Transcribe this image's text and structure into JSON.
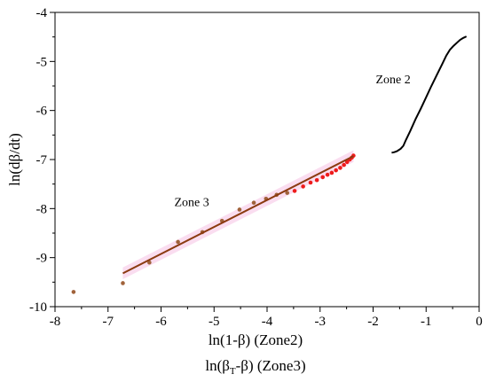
{
  "chart_data": {
    "type": "scatter",
    "xlabel": "ln(1-β) (Zone2)",
    "xlabel2_main": "ln(β",
    "xlabel2_sub": "T",
    "xlabel2_tail": "-β) (Zone3)",
    "ylabel": "ln(dβ/dt)",
    "xlim": [
      -8,
      0
    ],
    "ylim": [
      -10,
      -4
    ],
    "x_ticks": [
      -8,
      -7,
      -6,
      -5,
      -4,
      -3,
      -2,
      -1,
      0
    ],
    "y_ticks": [
      -4,
      -5,
      -6,
      -7,
      -8,
      -9,
      -10
    ],
    "x_tick_labels": [
      "-8",
      "-7",
      "-6",
      "-5",
      "-4",
      "-3",
      "-2",
      "-1",
      "0"
    ],
    "y_tick_labels": [
      "-4",
      "-5",
      "-6",
      "-7",
      "-8",
      "-9",
      "-10"
    ],
    "annotations": [
      {
        "text": "Zone 2",
        "x": -1.95,
        "y": -5.45
      },
      {
        "text": "Zone 3",
        "x": -5.75,
        "y": -7.95
      }
    ],
    "series": [
      {
        "key": "zone3_points",
        "color": "#a0623a",
        "points": [
          [
            -7.65,
            -9.7
          ],
          [
            -6.72,
            -9.52
          ],
          [
            -6.22,
            -9.1
          ],
          [
            -5.68,
            -8.68
          ],
          [
            -5.22,
            -8.48
          ],
          [
            -4.85,
            -8.25
          ],
          [
            -4.52,
            -8.02
          ],
          [
            -4.25,
            -7.88
          ],
          [
            -4.02,
            -7.8
          ],
          [
            -3.82,
            -7.72
          ],
          [
            -3.62,
            -7.68
          ]
        ]
      },
      {
        "key": "zone3_red_points",
        "color": "#ee1c1c",
        "points": [
          [
            -3.48,
            -7.64
          ],
          [
            -3.32,
            -7.55
          ],
          [
            -3.18,
            -7.47
          ],
          [
            -3.06,
            -7.42
          ],
          [
            -2.95,
            -7.36
          ],
          [
            -2.86,
            -7.31
          ],
          [
            -2.78,
            -7.27
          ],
          [
            -2.7,
            -7.22
          ],
          [
            -2.62,
            -7.17
          ],
          [
            -2.55,
            -7.11
          ],
          [
            -2.49,
            -7.05
          ],
          [
            -2.44,
            -7.0
          ],
          [
            -2.4,
            -6.96
          ],
          [
            -2.37,
            -6.92
          ]
        ]
      },
      {
        "key": "zone3_fit",
        "color": "#8b3a10",
        "line": [
          [
            -6.72,
            -9.32
          ],
          [
            -2.37,
            -6.93
          ]
        ]
      },
      {
        "key": "zone2",
        "color": "#000000",
        "points": [
          [
            -1.65,
            -6.86
          ],
          [
            -1.6,
            -6.85
          ],
          [
            -1.55,
            -6.83
          ],
          [
            -1.48,
            -6.78
          ],
          [
            -1.43,
            -6.72
          ],
          [
            -1.38,
            -6.6
          ],
          [
            -1.3,
            -6.42
          ],
          [
            -1.2,
            -6.18
          ],
          [
            -1.1,
            -5.96
          ],
          [
            -1.0,
            -5.73
          ],
          [
            -0.9,
            -5.5
          ],
          [
            -0.8,
            -5.28
          ],
          [
            -0.7,
            -5.06
          ],
          [
            -0.62,
            -4.88
          ],
          [
            -0.55,
            -4.76
          ],
          [
            -0.48,
            -4.68
          ],
          [
            -0.42,
            -4.62
          ],
          [
            -0.36,
            -4.56
          ],
          [
            -0.3,
            -4.52
          ],
          [
            -0.24,
            -4.49
          ]
        ]
      }
    ]
  }
}
